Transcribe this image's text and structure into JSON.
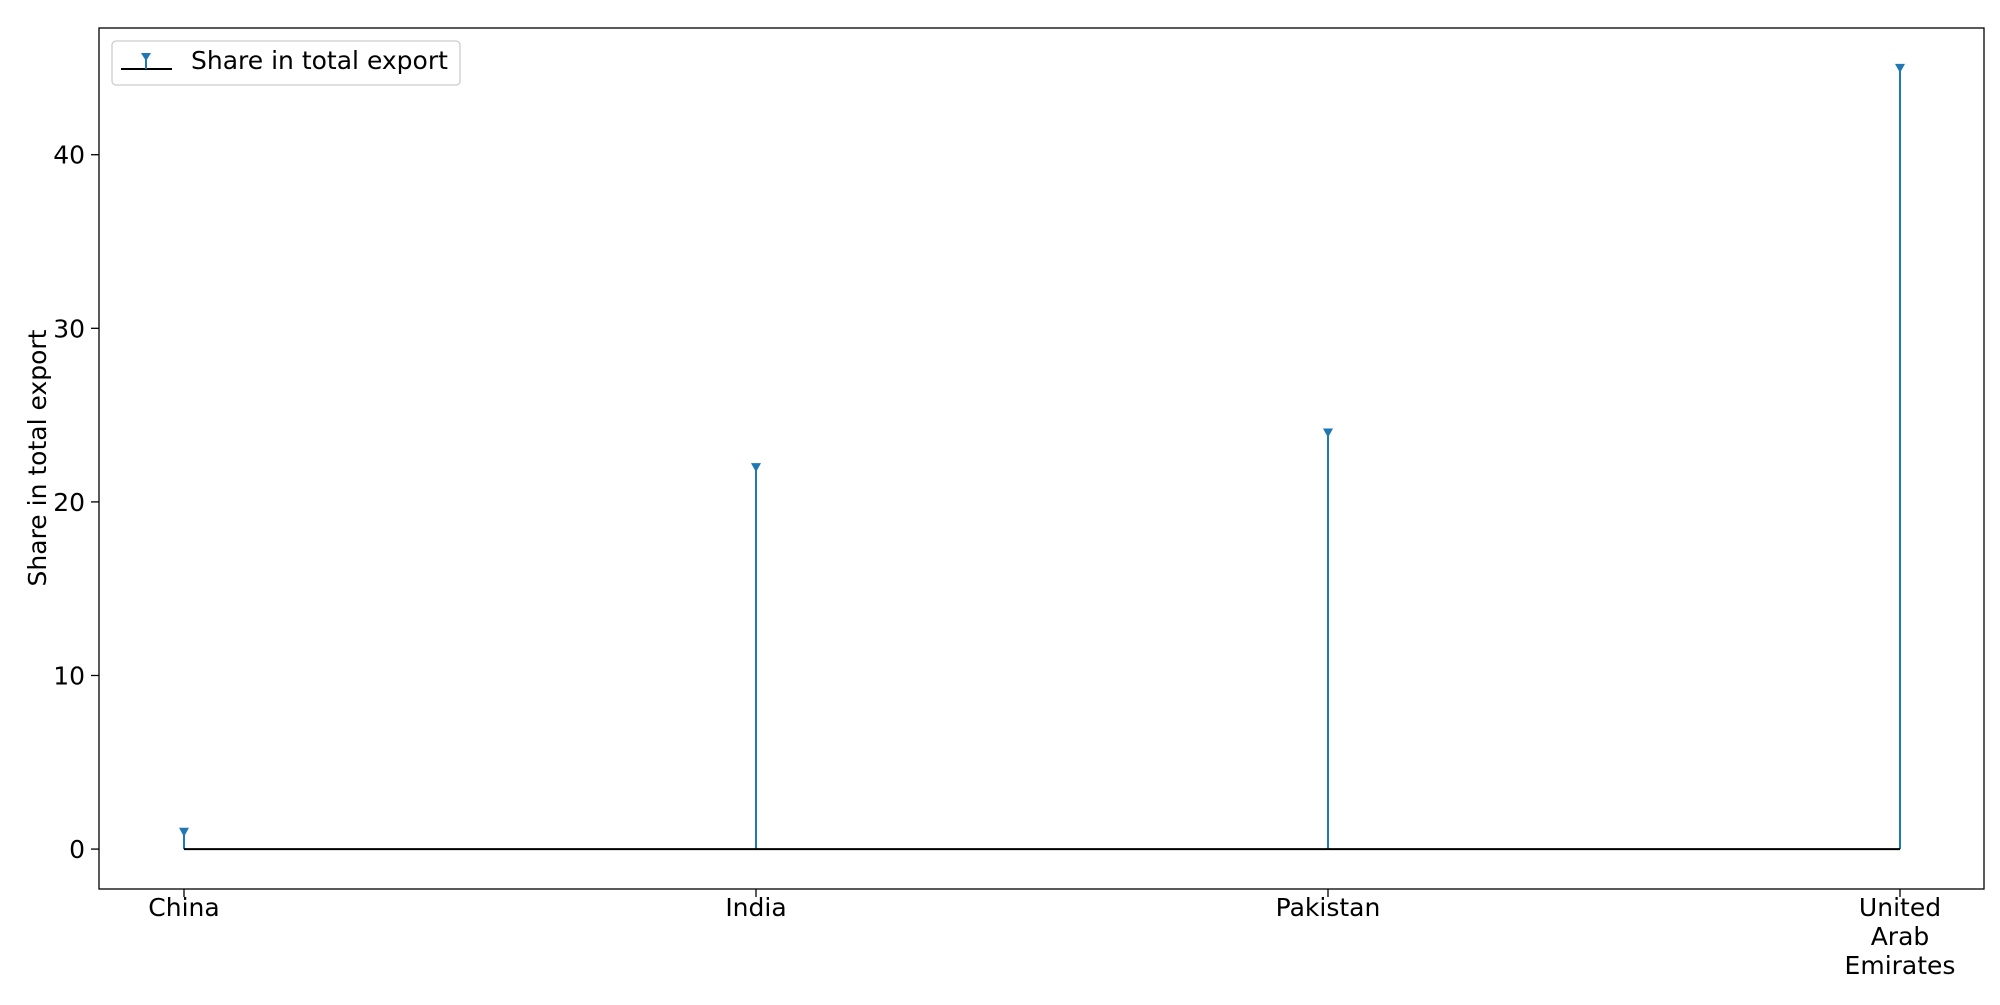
{
  "chart_data": {
    "type": "stem",
    "title": "",
    "xlabel": "",
    "ylabel": "Share in total export",
    "categories": [
      "China",
      "India",
      "Pakistan",
      "United Arab Emirates"
    ],
    "category_label_lines": [
      [
        "China"
      ],
      [
        "India"
      ],
      [
        "Pakistan"
      ],
      [
        "United",
        "Arab",
        "Emirates"
      ]
    ],
    "series": [
      {
        "name": "Share in total export",
        "values": [
          1,
          22,
          24,
          45
        ]
      }
    ],
    "baseline": 0,
    "ylim": [
      -2.3,
      47.3
    ],
    "yticks": [
      0,
      10,
      20,
      30,
      40
    ],
    "grid": false,
    "legend": {
      "position": "top-left",
      "label": "Share in total export"
    },
    "colors": {
      "stem": "#1f77b4",
      "baseline": "#000000",
      "frame": "#000000"
    }
  }
}
